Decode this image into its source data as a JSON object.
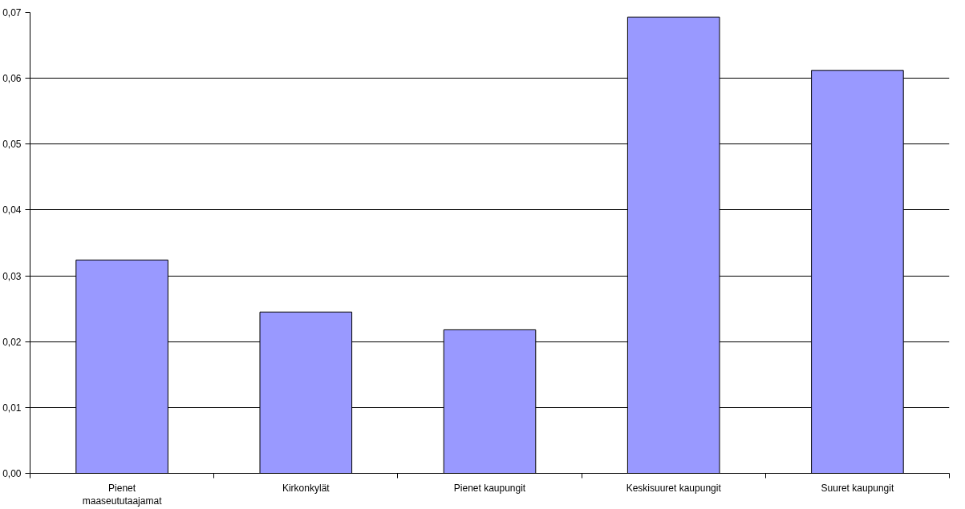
{
  "chart_data": {
    "type": "bar",
    "categories": [
      "Pienet maaseututaajamat",
      "Kirkonkylät",
      "Pienet kaupungit",
      "Keskisuuret kaupungit",
      "Suuret kaupungit"
    ],
    "values": [
      0.0324,
      0.0245,
      0.0218,
      0.0693,
      0.0612
    ],
    "color": "#9999ff",
    "ylim": [
      0,
      0.07
    ],
    "yticks": [
      {
        "value": 0,
        "label": "0,00"
      },
      {
        "value": 0.01,
        "label": "0,01"
      },
      {
        "value": 0.02,
        "label": "0,02"
      },
      {
        "value": 0.03,
        "label": "0,03"
      },
      {
        "value": 0.04,
        "label": "0,04"
      },
      {
        "value": 0.05,
        "label": "0,05"
      },
      {
        "value": 0.06,
        "label": "0,06"
      },
      {
        "value": 0.07,
        "label": "0,07"
      }
    ],
    "grid": "y"
  }
}
